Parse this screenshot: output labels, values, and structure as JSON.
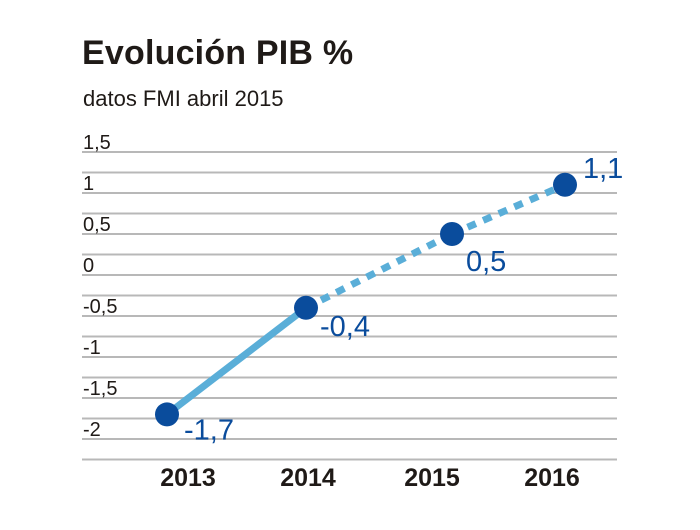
{
  "chart_data": {
    "type": "line",
    "title": "Evolución PIB %",
    "subtitle": "datos FMI abril 2015",
    "categories": [
      "2013",
      "2014",
      "2015",
      "2016"
    ],
    "values": [
      -1.7,
      -0.4,
      0.5,
      1.1
    ],
    "data_labels": [
      "-1,7",
      "-0,4",
      "0,5",
      "1,1"
    ],
    "actual_segment_end_index": 1,
    "forecast_dashed_from_index": 1,
    "ylim": [
      -2.25,
      1.5
    ],
    "yticks": [
      1.5,
      1,
      0.5,
      0,
      -0.5,
      -1,
      -1.5,
      -2
    ],
    "ytick_labels": [
      "1,5",
      "1",
      "0,5",
      "0",
      "-0,5",
      "-1",
      "-1,5",
      "-2"
    ],
    "grid": true,
    "colors": {
      "line": "#5aaed8",
      "marker": "#0a4c9c",
      "label": "#0a4c9c",
      "grid": "#b8b8b8"
    }
  }
}
